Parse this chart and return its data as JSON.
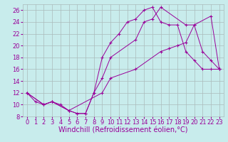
{
  "xlabel": "Windchill (Refroidissement éolien,°C)",
  "background_color": "#c8ecec",
  "line_color": "#990099",
  "grid_color": "#aabbbb",
  "xlim": [
    -0.5,
    23.5
  ],
  "ylim": [
    8,
    27
  ],
  "xticks": [
    0,
    1,
    2,
    3,
    4,
    5,
    6,
    7,
    8,
    9,
    10,
    11,
    12,
    13,
    14,
    15,
    16,
    17,
    18,
    19,
    20,
    21,
    22,
    23
  ],
  "yticks": [
    8,
    10,
    12,
    14,
    16,
    18,
    20,
    22,
    24,
    26
  ],
  "line1_x": [
    0,
    1,
    2,
    3,
    4,
    5,
    6,
    7,
    8,
    9,
    10,
    11,
    12,
    13,
    14,
    15,
    16,
    17,
    18,
    19,
    20,
    21,
    22,
    23
  ],
  "line1_y": [
    12,
    10.5,
    10,
    10.5,
    10,
    9,
    8.5,
    8.5,
    12,
    18,
    20.5,
    22,
    24,
    24.5,
    26,
    26.5,
    24,
    23.5,
    23.5,
    19,
    17.5,
    16,
    16,
    16
  ],
  "line2_x": [
    0,
    2,
    3,
    5,
    6,
    7,
    8,
    9,
    10,
    13,
    14,
    15,
    16,
    19,
    20,
    21,
    22,
    23
  ],
  "line2_y": [
    12,
    10,
    10.5,
    9,
    8.5,
    8.5,
    12,
    14.5,
    18,
    21,
    24,
    24.5,
    26.5,
    23.5,
    23.5,
    19,
    17.5,
    16
  ],
  "line3_x": [
    0,
    2,
    3,
    5,
    9,
    10,
    13,
    16,
    17,
    18,
    19,
    20,
    22,
    23
  ],
  "line3_y": [
    12,
    10,
    10.5,
    9,
    12,
    14.5,
    16,
    19,
    19.5,
    20,
    20.5,
    23.5,
    25,
    16
  ],
  "xlabel_fontsize": 7,
  "tick_fontsize": 6
}
